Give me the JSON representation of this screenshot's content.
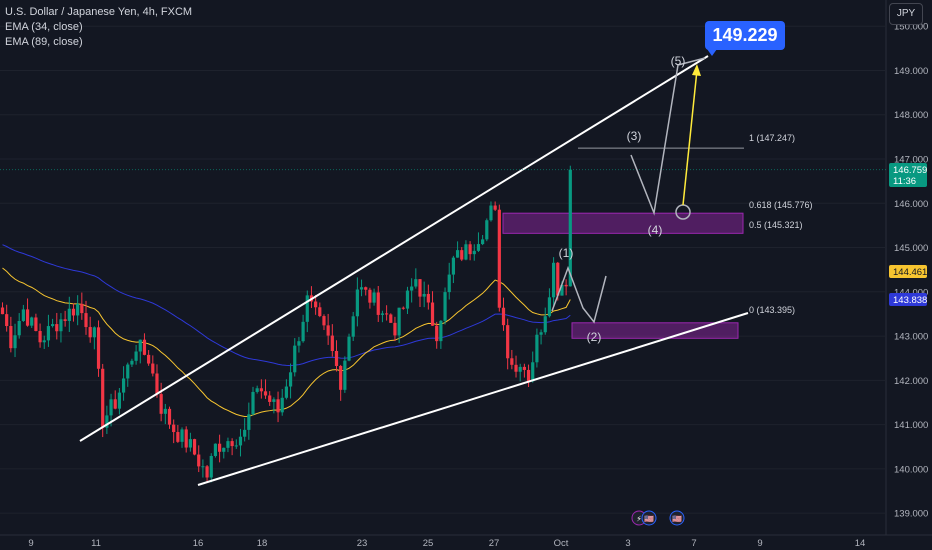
{
  "legend": {
    "symbol": "U.S. Dollar / Japanese Yen, 4h, FXCM",
    "ema34": "EMA (34, close)",
    "ema89": "EMA (89, close)"
  },
  "currency_button": "JPY",
  "target_label": "149.229",
  "colors": {
    "background": "#131722",
    "up_candle": "#089981",
    "down_candle": "#f23645",
    "ema34": "#f7c530",
    "ema89": "#2e39d8",
    "trendline": "#ffffff",
    "zone": "#9c27b0",
    "projection": "#ffeb3b",
    "target_badge": "#2962ff"
  },
  "chart_data": {
    "type": "candlestick",
    "title": "U.S. Dollar / Japanese Yen, 4h, FXCM",
    "ylim": [
      138.85,
      150.6
    ],
    "y_ticks": [
      "139.000",
      "140.000",
      "141.000",
      "142.000",
      "143.000",
      "144.000",
      "145.000",
      "146.000",
      "147.000",
      "148.000",
      "149.000",
      "150.000"
    ],
    "x_ticks": [
      "9",
      "11",
      "16",
      "18",
      "23",
      "25",
      "27",
      "Oct",
      "3",
      "7",
      "9",
      "14"
    ],
    "candle_count": 137,
    "price_path": [
      [
        0,
        143.5
      ],
      [
        2,
        142.9
      ],
      [
        5,
        143.6
      ],
      [
        9,
        142.9
      ],
      [
        13,
        143.3
      ],
      [
        18,
        143.7
      ],
      [
        22,
        143.0
      ],
      [
        24,
        141.1
      ],
      [
        27,
        141.5
      ],
      [
        32,
        142.8
      ],
      [
        35,
        142.5
      ],
      [
        38,
        141.4
      ],
      [
        41,
        140.9
      ],
      [
        45,
        140.5
      ],
      [
        49,
        139.85
      ],
      [
        51,
        140.5
      ],
      [
        55,
        140.7
      ],
      [
        58,
        140.8
      ],
      [
        61,
        141.9
      ],
      [
        66,
        141.3
      ],
      [
        69,
        142.3
      ],
      [
        73,
        143.8
      ],
      [
        78,
        142.9
      ],
      [
        81,
        142.0
      ],
      [
        85,
        144.1
      ],
      [
        90,
        143.7
      ],
      [
        94,
        143.2
      ],
      [
        99,
        144.3
      ],
      [
        104,
        143.1
      ],
      [
        108,
        144.7
      ],
      [
        112,
        145.0
      ],
      [
        115,
        145.4
      ],
      [
        117,
        145.8
      ],
      [
        118,
        145.7
      ],
      [
        119,
        143.8
      ],
      [
        121,
        142.7
      ],
      [
        123,
        142.2
      ],
      [
        124,
        142.5
      ],
      [
        126,
        142.1
      ],
      [
        128,
        142.9
      ],
      [
        130,
        143.6
      ],
      [
        132,
        144.6
      ],
      [
        133,
        144.1
      ],
      [
        135,
        144.3
      ],
      [
        136,
        143.8
      ],
      [
        138,
        143.5
      ],
      [
        139,
        143.8
      ],
      [
        140,
        144.2
      ],
      [
        142,
        145.2
      ],
      [
        144,
        146.1
      ],
      [
        146,
        146.7
      ],
      [
        147,
        147.0
      ],
      [
        148,
        146.76
      ]
    ],
    "current_price": "146.759",
    "countdown": "11:36",
    "ema34_value": "144.461",
    "ema89_value": "143.838",
    "fib_levels": [
      {
        "label": "1 (147.247)",
        "value": 147.247
      },
      {
        "label": "0.618 (145.776)",
        "value": 145.776
      },
      {
        "label": "0.5 (145.321)",
        "value": 145.321
      },
      {
        "label": "0 (143.395)",
        "value": 143.395
      }
    ],
    "wave_labels": [
      "(1)",
      "(2)",
      "(3)",
      "(4)",
      "(5)"
    ],
    "target": 149.229,
    "event_icons": [
      "⚡",
      "🇺🇸",
      "🇺🇸"
    ]
  }
}
